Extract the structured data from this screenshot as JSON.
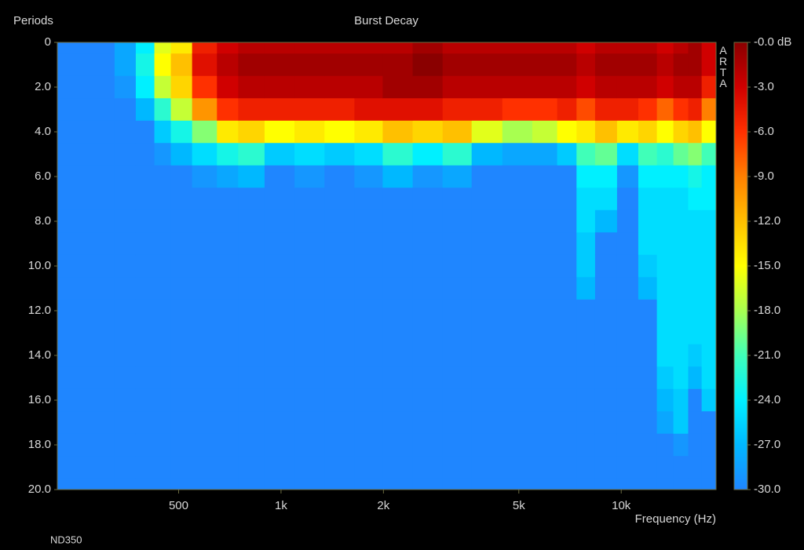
{
  "chart_data": {
    "type": "heatmap",
    "title": "Burst Decay",
    "ylabel": "Periods",
    "xlabel": "Frequency (Hz)",
    "note": "ND350",
    "brand": "ARTA",
    "log_x": true,
    "xlim": [
      220,
      19000
    ],
    "xticks": [
      500,
      {
        "value": 1000,
        "label": "1k"
      },
      {
        "value": 2000,
        "label": "2k"
      },
      {
        "value": 5000,
        "label": "5k"
      },
      {
        "value": 10000,
        "label": "10k"
      }
    ],
    "ylim": [
      0,
      20
    ],
    "yticks": [
      0,
      {
        "value": 2,
        "label": "2.0"
      },
      {
        "value": 4,
        "label": "4.0"
      },
      {
        "value": 6,
        "label": "6.0"
      },
      {
        "value": 8,
        "label": "8.0"
      },
      {
        "value": 10,
        "label": "10.0"
      },
      {
        "value": 12,
        "label": "12.0"
      },
      {
        "value": 14,
        "label": "14.0"
      },
      {
        "value": 16,
        "label": "16.0"
      },
      {
        "value": 18,
        "label": "18.0"
      },
      {
        "value": 20,
        "label": "20.0"
      }
    ],
    "zlim": [
      -30,
      0
    ],
    "zticks": [
      {
        "value": 0,
        "label": "-0.0 dB"
      },
      {
        "value": -3,
        "label": "-3.0"
      },
      {
        "value": -6,
        "label": "-6.0"
      },
      {
        "value": -9,
        "label": "-9.0"
      },
      {
        "value": -12,
        "label": "-12.0"
      },
      {
        "value": -15,
        "label": "-15.0"
      },
      {
        "value": -18,
        "label": "-18.0"
      },
      {
        "value": -21,
        "label": "-21.0"
      },
      {
        "value": -24,
        "label": "-24.0"
      },
      {
        "value": -27,
        "label": "-27.0"
      },
      {
        "value": -30,
        "label": "-30.0"
      }
    ],
    "colormap": [
      "#1f86ff",
      "#00b8ff",
      "#00f0ff",
      "#40ffb8",
      "#a8ff50",
      "#ffff00",
      "#ffc000",
      "#ff8000",
      "#ff3000",
      "#d00000",
      "#8a0000"
    ],
    "x": [
      250,
      300,
      350,
      400,
      450,
      500,
      600,
      700,
      800,
      1000,
      1200,
      1500,
      1800,
      2200,
      2700,
      3300,
      4000,
      5000,
      6000,
      7000,
      7800,
      9000,
      10500,
      12000,
      13500,
      15000,
      16500,
      18000
    ],
    "y": [
      0,
      1,
      2,
      3,
      4,
      5,
      6,
      7,
      8,
      9,
      10,
      11,
      12,
      13,
      14,
      15,
      16,
      17,
      18,
      19,
      20
    ],
    "z": [
      [
        -30,
        -30,
        -30,
        -30,
        -30,
        -30,
        -30,
        -30,
        -30,
        -30,
        -30,
        -30,
        -30,
        -30,
        -30,
        -30,
        -30,
        -30,
        -30,
        -30,
        -30
      ],
      [
        -30,
        -30,
        -30,
        -30,
        -30,
        -30,
        -30,
        -30,
        -30,
        -30,
        -30,
        -30,
        -30,
        -30,
        -30,
        -30,
        -30,
        -30,
        -30,
        -30,
        -30
      ],
      [
        -28,
        -28,
        -29,
        -30,
        -30,
        -30,
        -30,
        -30,
        -30,
        -30,
        -30,
        -30,
        -30,
        -30,
        -30,
        -30,
        -30,
        -30,
        -30,
        -30,
        -30
      ],
      [
        -24,
        -23,
        -24,
        -27,
        -30,
        -30,
        -30,
        -30,
        -30,
        -30,
        -30,
        -30,
        -30,
        -30,
        -30,
        -30,
        -30,
        -30,
        -30,
        -30,
        -30
      ],
      [
        -16,
        -15,
        -17,
        -22,
        -26,
        -29,
        -30,
        -30,
        -30,
        -30,
        -30,
        -30,
        -30,
        -30,
        -30,
        -30,
        -30,
        -30,
        -30,
        -30,
        -30
      ],
      [
        -14,
        -12,
        -13,
        -17,
        -23,
        -27,
        -30,
        -30,
        -30,
        -30,
        -30,
        -30,
        -30,
        -30,
        -30,
        -30,
        -30,
        -30,
        -30,
        -30,
        -30
      ],
      [
        -5,
        -4,
        -6,
        -10,
        -19,
        -25,
        -29,
        -30,
        -30,
        -30,
        -30,
        -30,
        -30,
        -30,
        -30,
        -30,
        -30,
        -30,
        -30,
        -30,
        -30
      ],
      [
        -3,
        -2,
        -3,
        -6,
        -14,
        -23,
        -28,
        -30,
        -30,
        -30,
        -30,
        -30,
        -30,
        -30,
        -30,
        -30,
        -30,
        -30,
        -30,
        -30,
        -30
      ],
      [
        -2,
        -1,
        -2,
        -5,
        -13,
        -22,
        -27,
        -30,
        -30,
        -30,
        -30,
        -30,
        -30,
        -30,
        -30,
        -30,
        -30,
        -30,
        -30,
        -30,
        -30
      ],
      [
        -2,
        -1,
        -2,
        -5,
        -15,
        -26,
        -30,
        -30,
        -30,
        -30,
        -30,
        -30,
        -30,
        -30,
        -30,
        -30,
        -30,
        -30,
        -30,
        -30,
        -30
      ],
      [
        -2,
        -1,
        -2,
        -5,
        -14,
        -25,
        -29,
        -30,
        -30,
        -30,
        -30,
        -30,
        -30,
        -30,
        -30,
        -30,
        -30,
        -30,
        -30,
        -30,
        -30
      ],
      [
        -2,
        -1,
        -2,
        -5,
        -15,
        -26,
        -30,
        -30,
        -30,
        -30,
        -30,
        -30,
        -30,
        -30,
        -30,
        -30,
        -30,
        -30,
        -30,
        -30,
        -30
      ],
      [
        -2,
        -1,
        -2,
        -4,
        -14,
        -25,
        -29,
        -30,
        -30,
        -30,
        -30,
        -30,
        -30,
        -30,
        -30,
        -30,
        -30,
        -30,
        -30,
        -30,
        -30
      ],
      [
        -2,
        -1,
        -1,
        -4,
        -12,
        -22,
        -27,
        -30,
        -30,
        -30,
        -30,
        -30,
        -30,
        -30,
        -30,
        -30,
        -30,
        -30,
        -30,
        -30,
        -30
      ],
      [
        -1,
        0,
        -1,
        -4,
        -13,
        -24,
        -29,
        -30,
        -30,
        -30,
        -30,
        -30,
        -30,
        -30,
        -30,
        -30,
        -30,
        -30,
        -30,
        -30,
        -30
      ],
      [
        -2,
        -1,
        -2,
        -5,
        -12,
        -22,
        -28,
        -30,
        -30,
        -30,
        -30,
        -30,
        -30,
        -30,
        -30,
        -30,
        -30,
        -30,
        -30,
        -30,
        -30
      ],
      [
        -2,
        -1,
        -2,
        -5,
        -16,
        -27,
        -30,
        -30,
        -30,
        -30,
        -30,
        -30,
        -30,
        -30,
        -30,
        -30,
        -30,
        -30,
        -30,
        -30,
        -30
      ],
      [
        -2,
        -1,
        -2,
        -6,
        -18,
        -28,
        -30,
        -30,
        -30,
        -30,
        -30,
        -30,
        -30,
        -30,
        -30,
        -30,
        -30,
        -30,
        -30,
        -30,
        -30
      ],
      [
        -2,
        -1,
        -2,
        -6,
        -17,
        -28,
        -30,
        -30,
        -30,
        -30,
        -30,
        -30,
        -30,
        -30,
        -30,
        -30,
        -30,
        -30,
        -30,
        -30,
        -30
      ],
      [
        -2,
        -1,
        -2,
        -5,
        -15,
        -26,
        -30,
        -30,
        -30,
        -30,
        -30,
        -30,
        -30,
        -30,
        -30,
        -30,
        -30,
        -30,
        -30,
        -30,
        -30
      ],
      [
        -3,
        -2,
        -3,
        -7,
        -14,
        -21,
        -24,
        -25,
        -25,
        -26,
        -26,
        -27,
        -30,
        -30,
        -30,
        -30,
        -30,
        -30,
        -30,
        -30,
        -30
      ],
      [
        -2,
        -1,
        -2,
        -5,
        -12,
        -20,
        -24,
        -25,
        -27,
        -30,
        -30,
        -30,
        -30,
        -30,
        -30,
        -30,
        -30,
        -30,
        -30,
        -30,
        -30
      ],
      [
        -2,
        -1,
        -2,
        -5,
        -14,
        -25,
        -29,
        -30,
        -30,
        -30,
        -30,
        -30,
        -30,
        -30,
        -30,
        -30,
        -30,
        -30,
        -30,
        -30,
        -30
      ],
      [
        -2,
        -1,
        -2,
        -6,
        -13,
        -21,
        -24,
        -25,
        -25,
        -25,
        -26,
        -27,
        -30,
        -30,
        -30,
        -30,
        -30,
        -30,
        -30,
        -30,
        -30
      ],
      [
        -3,
        -2,
        -3,
        -8,
        -15,
        -22,
        -24,
        -25,
        -25,
        -25,
        -25,
        -25,
        -25,
        -25,
        -25,
        -26,
        -27,
        -28,
        -30,
        -30,
        -30
      ],
      [
        -2,
        -1,
        -2,
        -6,
        -13,
        -20,
        -24,
        -25,
        -25,
        -25,
        -25,
        -25,
        -25,
        -25,
        -25,
        -25,
        -26,
        -26,
        -29,
        -30,
        -30
      ],
      [
        -1,
        -1,
        -2,
        -5,
        -12,
        -19,
        -23,
        -24,
        -25,
        -25,
        -25,
        -25,
        -25,
        -25,
        -26,
        -27,
        -30,
        -30,
        -30,
        -30,
        -30
      ],
      [
        -3,
        -3,
        -5,
        -9,
        -15,
        -21,
        -24,
        -24,
        -25,
        -25,
        -25,
        -25,
        -25,
        -25,
        -25,
        -25,
        -26,
        -30,
        -30,
        -30,
        -30
      ]
    ]
  }
}
